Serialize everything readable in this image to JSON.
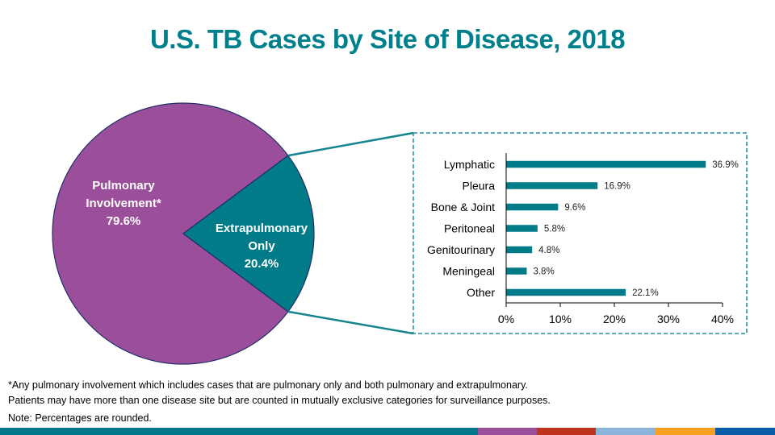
{
  "title": "U.S. TB Cases by Site of Disease, 2018",
  "colors": {
    "title": "#00808C",
    "pulmonary": "#9B4F9A",
    "extrapulmonary": "#007B87",
    "bar": "#007B87",
    "connector": "#14858F",
    "box_border": "#2A8D99"
  },
  "chart_data": [
    {
      "type": "pie",
      "title": "",
      "slices": [
        {
          "label": "Pulmonary Involvement*",
          "label_lines": [
            "Pulmonary",
            "Involvement*",
            "79.6%"
          ],
          "value": 79.6,
          "color": "#9B4F9A"
        },
        {
          "label": "Extrapulmonary Only",
          "label_lines": [
            "Extrapulmonary",
            "Only",
            "20.4%"
          ],
          "value": 20.4,
          "color": "#007B87"
        }
      ]
    },
    {
      "type": "bar",
      "orientation": "horizontal",
      "title": "",
      "categories": [
        "Lymphatic",
        "Pleura",
        "Bone & Joint",
        "Peritoneal",
        "Genitourinary",
        "Meningeal",
        "Other"
      ],
      "values": [
        36.9,
        16.9,
        9.6,
        5.8,
        4.8,
        3.8,
        22.1
      ],
      "data_labels": [
        "36.9%",
        "16.9%",
        "9.6%",
        "5.8%",
        "4.8%",
        "3.8%",
        "22.1%"
      ],
      "xlabel": "",
      "ylabel": "",
      "xlim": [
        0,
        40
      ],
      "xticks": [
        0,
        10,
        20,
        30,
        40
      ],
      "xtick_labels": [
        "0%",
        "10%",
        "20%",
        "30%",
        "40%"
      ],
      "grid": false,
      "legend": "none"
    }
  ],
  "footnotes": [
    "*Any pulmonary involvement which includes cases that are pulmonary only and both pulmonary and extrapulmonary.",
    "Patients may have more than one disease site but are counted in mutually exclusive categories for surveillance purposes.",
    "Note:  Percentages are rounded."
  ],
  "footer_bar_colors": [
    "#00788A",
    "#9B4F9A",
    "#C0341D",
    "#8AB4D9",
    "#F5A01E",
    "#0A5CA8"
  ]
}
